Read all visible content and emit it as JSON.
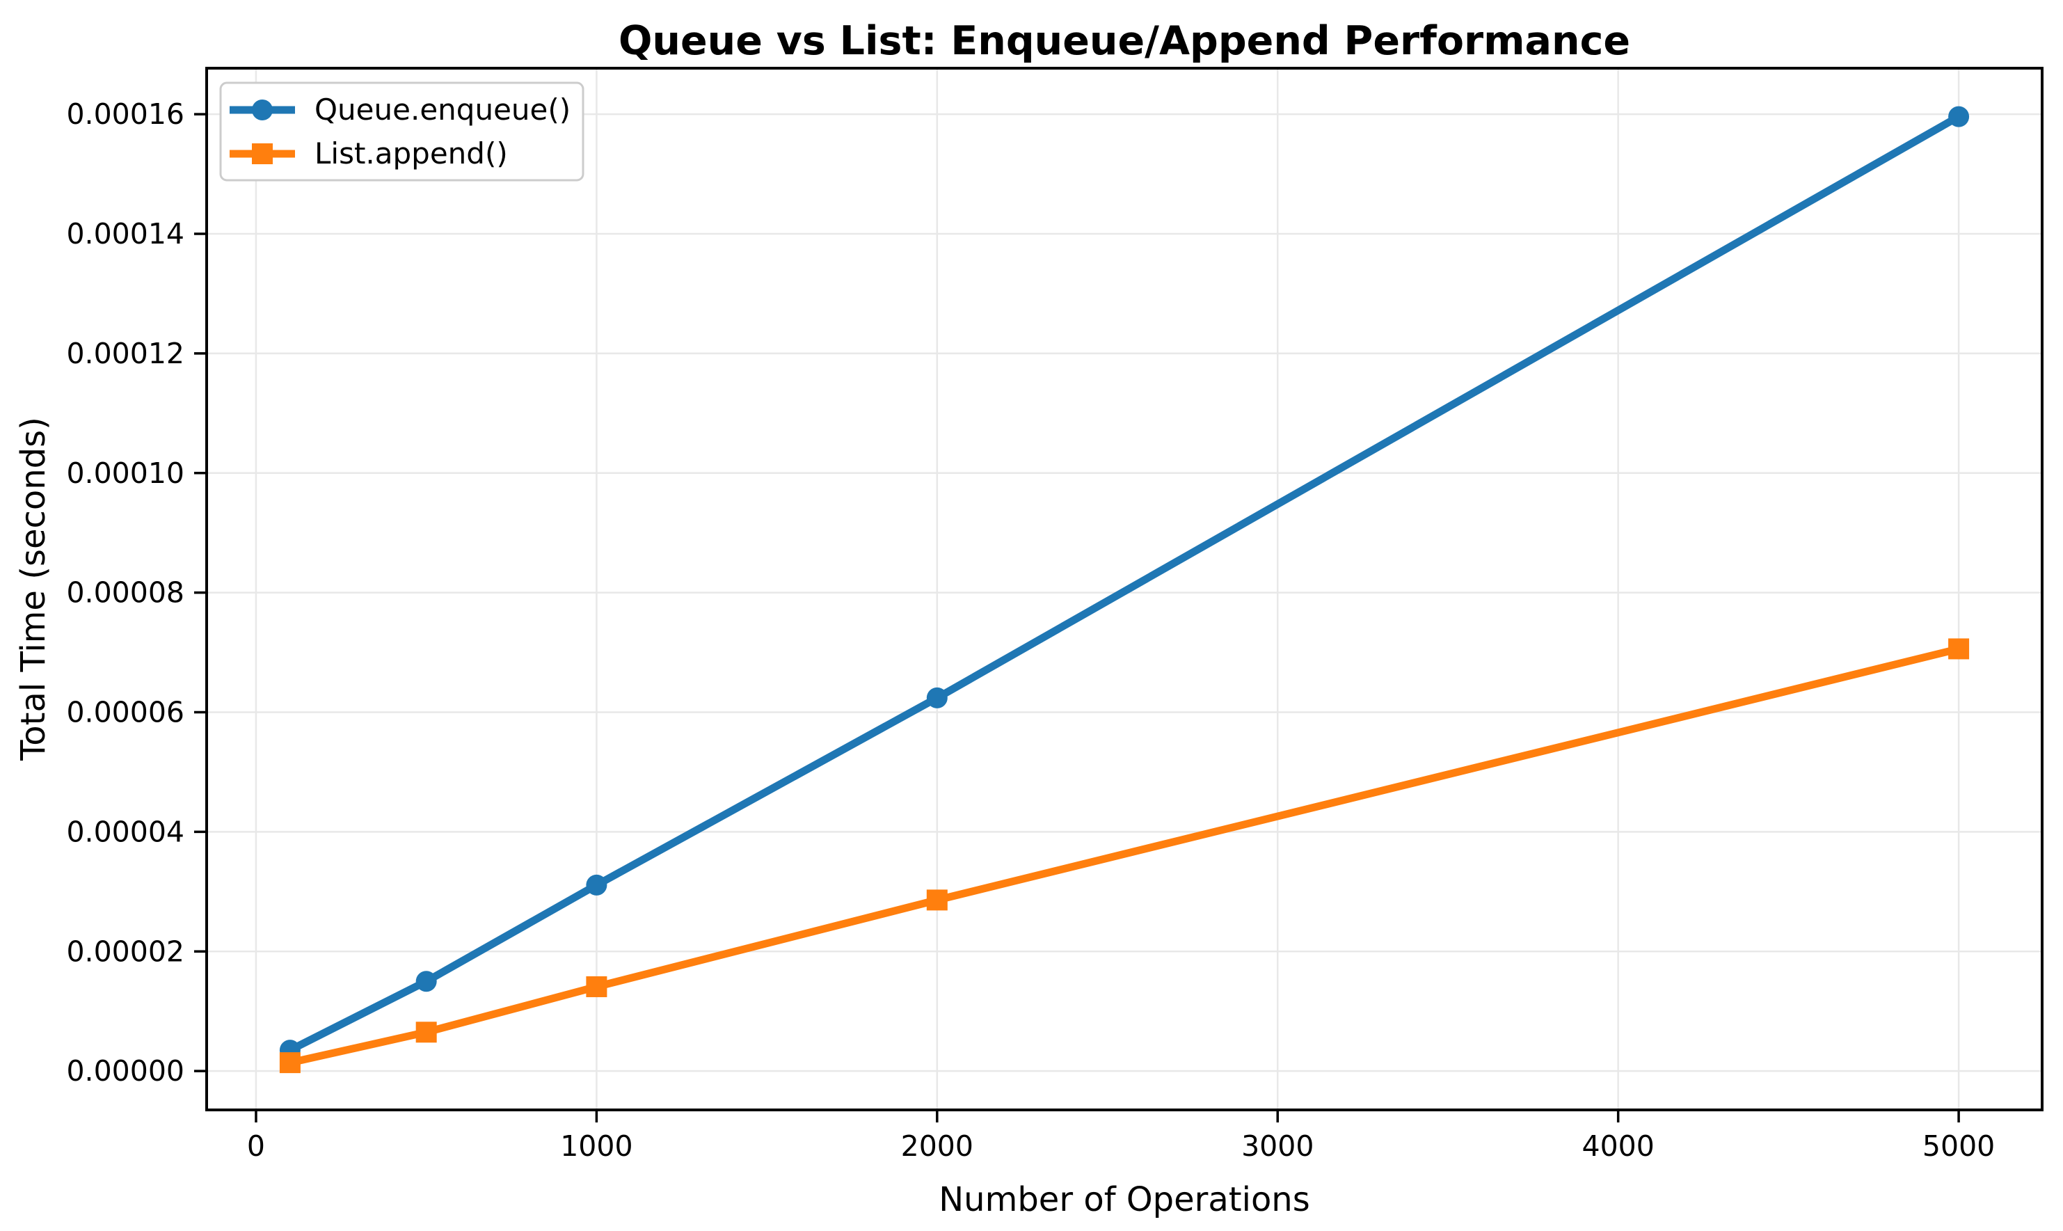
{
  "chart_data": {
    "type": "line",
    "title": "Queue vs List: Enqueue/Append Performance",
    "xlabel": "Number of Operations",
    "ylabel": "Total Time (seconds)",
    "x": [
      100,
      500,
      1000,
      2000,
      5000
    ],
    "series": [
      {
        "name": "Queue.enqueue()",
        "color": "#1f77b4",
        "marker": "circle",
        "values": [
          3.5e-06,
          1.5e-05,
          3.11e-05,
          6.24e-05,
          0.0001596
        ]
      },
      {
        "name": "List.append()",
        "color": "#ff7f0e",
        "marker": "square",
        "values": [
          1.4e-06,
          6.5e-06,
          1.41e-05,
          2.86e-05,
          7.06e-05
        ]
      }
    ],
    "x_ticks": [
      0,
      1000,
      2000,
      3000,
      4000,
      5000
    ],
    "x_tick_labels": [
      "0",
      "1000",
      "2000",
      "3000",
      "4000",
      "5000"
    ],
    "y_ticks": [
      0.0,
      2e-05,
      4e-05,
      6e-05,
      8e-05,
      0.0001,
      0.00012,
      0.00014,
      0.00016
    ],
    "y_tick_labels": [
      "0.00000",
      "0.00002",
      "0.00004",
      "0.00006",
      "0.00008",
      "0.00010",
      "0.00012",
      "0.00014",
      "0.00016"
    ],
    "xlim": [
      -145,
      5245
    ],
    "ylim": [
      -6.5e-06,
      0.0001677
    ],
    "grid": true,
    "grid_color": "#e8e8e8",
    "legend_position": "upper left",
    "background_color": "#ffffff"
  }
}
